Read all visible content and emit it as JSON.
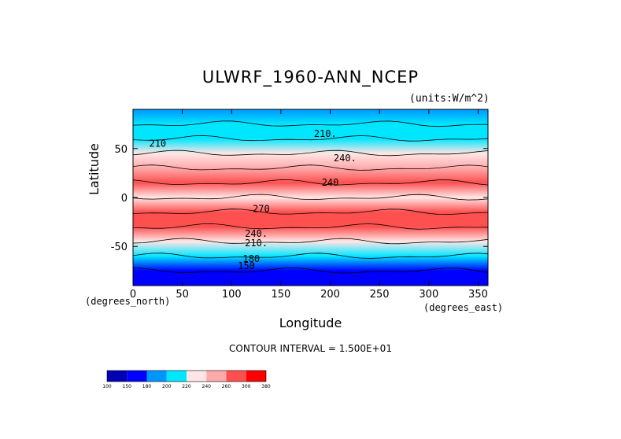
{
  "chart_data": {
    "type": "heatmap",
    "title": "ULWRF_1960-ANN_NCEP",
    "units_label": "(units:W/m^2)",
    "xlabel": "Longitude",
    "ylabel": "Latitude",
    "x_unit_label": "(degrees_east)",
    "y_unit_label": "(degrees_north)",
    "xlim": [
      0,
      360
    ],
    "ylim": [
      -90,
      90
    ],
    "x_ticks": [
      0,
      50,
      100,
      150,
      200,
      250,
      300,
      350
    ],
    "y_ticks": [
      -50,
      0,
      50
    ],
    "contour_interval_text": "CONTOUR INTERVAL = 1.500E+01",
    "contour_labels": [
      {
        "text": "210",
        "lon": 25,
        "lat": 52
      },
      {
        "text": "210.",
        "lon": 195,
        "lat": 62
      },
      {
        "text": "240.",
        "lon": 215,
        "lat": 37
      },
      {
        "text": "240",
        "lon": 200,
        "lat": 12
      },
      {
        "text": "270",
        "lon": 130,
        "lat": -15
      },
      {
        "text": "240.",
        "lon": 125,
        "lat": -40
      },
      {
        "text": "210.",
        "lon": 125,
        "lat": -50
      },
      {
        "text": "180",
        "lon": 120,
        "lat": -66
      },
      {
        "text": "150",
        "lon": 115,
        "lat": -73
      }
    ],
    "colorbar": {
      "levels": [
        "100",
        "150",
        "180",
        "200",
        "220",
        "240",
        "260",
        "300",
        "380"
      ],
      "colors": [
        "#0000b4",
        "#0000ff",
        "#0096ff",
        "#00e6ff",
        "#ffe6e6",
        "#ffaaaa",
        "#ff5050",
        "#ff0000"
      ]
    },
    "latitude_profile": [
      {
        "lat": 90,
        "value": 190
      },
      {
        "lat": 75,
        "value": 200
      },
      {
        "lat": 60,
        "value": 210
      },
      {
        "lat": 45,
        "value": 225
      },
      {
        "lat": 30,
        "value": 255
      },
      {
        "lat": 15,
        "value": 262
      },
      {
        "lat": 0,
        "value": 232
      },
      {
        "lat": -15,
        "value": 268
      },
      {
        "lat": -30,
        "value": 262
      },
      {
        "lat": -45,
        "value": 225
      },
      {
        "lat": -60,
        "value": 207
      },
      {
        "lat": -75,
        "value": 170
      },
      {
        "lat": -90,
        "value": 150
      }
    ]
  }
}
